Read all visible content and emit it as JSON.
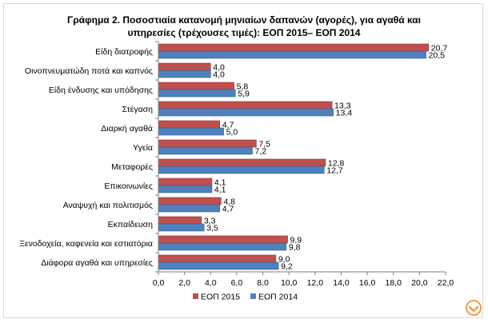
{
  "chart_data": {
    "type": "bar",
    "orientation": "horizontal",
    "title_line1": "Γράφημα 2. Ποσοστιαία κατανομή μηνιαίων δαπανών (αγορές), για αγαθά και",
    "title_line2": "υπηρεσίες (τρέχουσες τιμές): ΕΟΠ 2015– ΕΟΠ 2014",
    "categories": [
      "Είδη διατροφής",
      "Οινοπνευματώδη ποτά και καπνός",
      "Είδη ένδυσης και υπόδησης",
      "Στέγαση",
      "Διαρκή αγαθά",
      "Υγεία",
      "Μεταφορές",
      "Επικοινωνίες",
      "Αναψυχή και πολιτισμός",
      "Εκπαίδευση",
      "Ξενοδοχεία, καφενεία και εστιατόρια",
      "Διάφορα αγαθά και υπηρεσίες"
    ],
    "series": [
      {
        "name": "ΕΟΠ 2015",
        "color": "#c0504d",
        "values": [
          20.7,
          4.0,
          5.8,
          13.3,
          4.7,
          7.5,
          12.8,
          4.1,
          4.8,
          3.3,
          9.9,
          9.0
        ],
        "labels": [
          "20,7",
          "4,0",
          "5,8",
          "13,3",
          "4,7",
          "7,5",
          "12,8",
          "4,1",
          "4,8",
          "3,3",
          "9,9",
          "9,0"
        ]
      },
      {
        "name": "ΕΟΠ 2014",
        "color": "#4f81bd",
        "values": [
          20.5,
          4.0,
          5.9,
          13.4,
          5.0,
          7.2,
          12.7,
          4.1,
          4.7,
          3.5,
          9.8,
          9.2
        ],
        "labels": [
          "20,5",
          "4,0",
          "5,9",
          "13,4",
          "5,0",
          "7,2",
          "12,7",
          "4,1",
          "4,7",
          "3,5",
          "9,8",
          "9,2"
        ]
      }
    ],
    "xlim": [
      0,
      22
    ],
    "x_ticks": [
      0,
      2,
      4,
      6,
      8,
      10,
      12,
      14,
      16,
      18,
      20,
      22
    ],
    "x_tick_labels": [
      "0,0",
      "2,0",
      "4,0",
      "6,0",
      "8,0",
      "10,0",
      "12,0",
      "14,0",
      "16,0",
      "18,0",
      "20,0",
      "22,0"
    ],
    "grid": false,
    "legend_position": "bottom"
  },
  "logo": {
    "color": "#f0a04b",
    "icon": "logo-mark-icon"
  }
}
